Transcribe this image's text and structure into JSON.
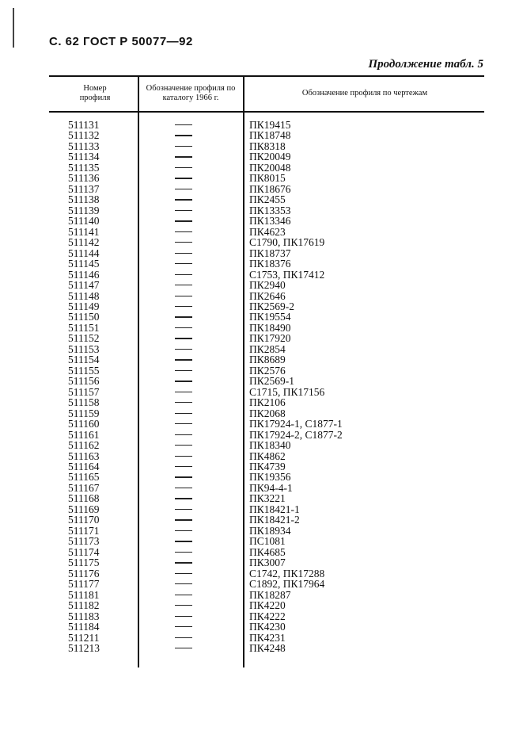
{
  "header": {
    "running_head": "С. 62 ГОСТ Р 50077—92",
    "continuation": "Продолжение табл. 5"
  },
  "table": {
    "columns": [
      "Номер профиля",
      "Обозначение профиля по каталогу 1966 г.",
      "Обозначение профиля по чертежам"
    ],
    "rows": [
      [
        "511131",
        "—",
        "ПК19415"
      ],
      [
        "511132",
        "—",
        "ПК18748"
      ],
      [
        "511133",
        "—",
        "ПК8318"
      ],
      [
        "511134",
        "—",
        "ПК20049"
      ],
      [
        "511135",
        "—",
        "ПК20048"
      ],
      [
        "511136",
        "—",
        "ПК8015"
      ],
      [
        "511137",
        "—",
        "ПК18676"
      ],
      [
        "511138",
        "—",
        "ПК2455"
      ],
      [
        "511139",
        "—",
        "ПК13353"
      ],
      [
        "511140",
        "—",
        "ПК13346"
      ],
      [
        "511141",
        "—",
        "ПК4623"
      ],
      [
        "511142",
        "—",
        "С1790, ПК17619"
      ],
      [
        "511144",
        "—",
        "ПК18737"
      ],
      [
        "511145",
        "—",
        "ПК18376"
      ],
      [
        "511146",
        "—",
        "С1753, ПК17412"
      ],
      [
        "511147",
        "—",
        "ПК2940"
      ],
      [
        "511148",
        "—",
        "ПК2646"
      ],
      [
        "511149",
        "—",
        "ПК2569-2"
      ],
      [
        "511150",
        "—",
        "ПК19554"
      ],
      [
        "511151",
        "—",
        "ПК18490"
      ],
      [
        "511152",
        "—",
        "ПК17920"
      ],
      [
        "511153",
        "—",
        "ПК2854"
      ],
      [
        "511154",
        "—",
        "ПК8689"
      ],
      [
        "511155",
        "—",
        "ПК2576"
      ],
      [
        "511156",
        "—",
        "ПК2569-1"
      ],
      [
        "511157",
        "—",
        "С1715, ПК17156"
      ],
      [
        "511158",
        "—",
        "ПК2106"
      ],
      [
        "511159",
        "—",
        "ПК2068"
      ],
      [
        "511160",
        "—",
        "ПК17924-1, С1877-1"
      ],
      [
        "511161",
        "—",
        "ПК17924-2, С1877-2"
      ],
      [
        "511162",
        "—",
        "ПК18340"
      ],
      [
        "511163",
        "—",
        "ПК4862"
      ],
      [
        "511164",
        "—",
        "ПК4739"
      ],
      [
        "511165",
        "—",
        "ПК19356"
      ],
      [
        "511167",
        "—",
        "ПК94-4-1"
      ],
      [
        "511168",
        "—",
        "ПК3221"
      ],
      [
        "511169",
        "—",
        "ПК18421-1"
      ],
      [
        "511170",
        "—",
        "ПК18421-2"
      ],
      [
        "511171",
        "—",
        "ПК18934"
      ],
      [
        "511173",
        "—",
        "ПС1081"
      ],
      [
        "511174",
        "—",
        "ПК4685"
      ],
      [
        "511175",
        "—",
        "ПК3007"
      ],
      [
        "511176",
        "—",
        "С1742, ПК17288"
      ],
      [
        "511177",
        "—",
        "С1892, ПК17964"
      ],
      [
        "511181",
        "—",
        "ПК18287"
      ],
      [
        "511182",
        "—",
        "ПК4220"
      ],
      [
        "511183",
        "—",
        "ПК4222"
      ],
      [
        "511184",
        "—",
        "ПК4230"
      ],
      [
        "511211",
        "—",
        "ПК4231"
      ],
      [
        "511213",
        "—",
        "ПК4248"
      ]
    ]
  }
}
